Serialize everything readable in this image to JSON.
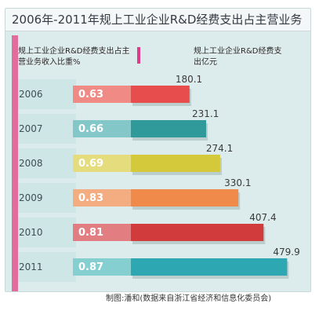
{
  "title": "2006年-2011年规上工业企业R&D经费支出占主营业务收入比重",
  "header_left": "规上工业企业R&D经费支出占主营业务收入比重%",
  "header_right": "规上工业企业R&D经费支出亿元",
  "credit": "制图:潘和(数据来自浙江省经济和信息化委员会)",
  "colors": {
    "background": "#dcebeb",
    "pink_strip": "#e26c9b",
    "header_mark": "#de3b89",
    "ratio_band": "#b8dde0"
  },
  "chart_data": {
    "type": "bar",
    "title": "2006年-2011年规上工业企业R&D经费支出占主营业务收入比重",
    "categories": [
      "2006",
      "2007",
      "2008",
      "2009",
      "2010",
      "2011"
    ],
    "series": [
      {
        "name": "规上工业企业R&D经费支出占主营业务收入比重%",
        "values": [
          0.63,
          0.66,
          0.69,
          0.83,
          0.81,
          0.87
        ],
        "value_labels": [
          "0.63",
          "0.66",
          "0.69",
          "0.83",
          "0.81",
          "0.87"
        ]
      },
      {
        "name": "规上工业企业R&D经费支出亿元",
        "values": [
          180.1,
          231.1,
          274.1,
          330.1,
          407.4,
          479.9
        ],
        "value_labels": [
          "180.1",
          "231.1",
          "274.1",
          "330.1",
          "407.4",
          "479.9"
        ]
      }
    ],
    "bar_colors": [
      "#e84d4d",
      "#2f9a99",
      "#d4c93b",
      "#f08a4b",
      "#d13b3b",
      "#2da8b2"
    ],
    "ratio_colors": [
      "#ef8a85",
      "#84c7c8",
      "#e5dc7d",
      "#f3ad81",
      "#e27e82",
      "#86cfd1"
    ],
    "xlim": [
      0,
      500
    ],
    "grid": false,
    "legend": "top"
  }
}
